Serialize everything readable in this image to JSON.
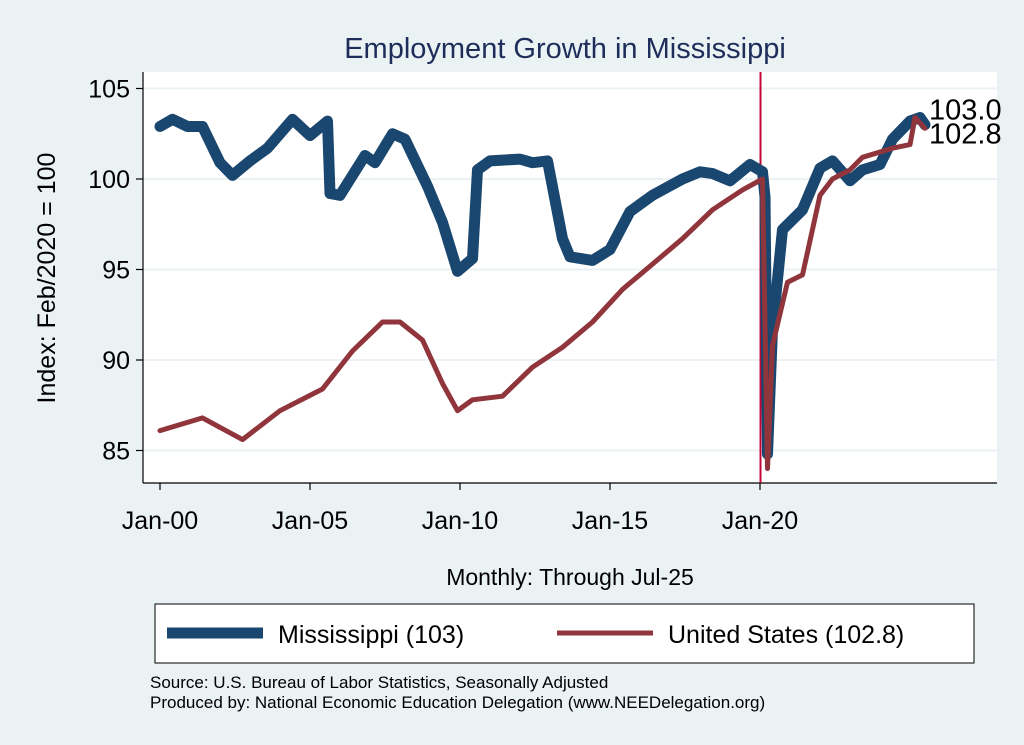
{
  "chart_data": {
    "type": "line",
    "title": "Employment Growth in Mississippi",
    "xlabel": "Monthly: Through Jul-25",
    "ylabel": "Index: Feb/2020 = 100",
    "x_ticks": [
      "Jan-00",
      "Jan-05",
      "Jan-10",
      "Jan-15",
      "Jan-20"
    ],
    "x_tick_dates": [
      "2000-01",
      "2005-01",
      "2010-01",
      "2015-01",
      "2020-01"
    ],
    "y_ticks": [
      85,
      90,
      95,
      100,
      105
    ],
    "ylim": [
      83.2,
      106
    ],
    "xlim": [
      "1999-07",
      "2027-09"
    ],
    "grid": true,
    "reference_line": {
      "x": "2020-02",
      "color": "#c10534"
    },
    "legend_position": "bottom",
    "series": [
      {
        "name": "Mississippi (103)",
        "color": "#1a476f",
        "end_label": "103.0",
        "points": [
          [
            "2000-01",
            102.9
          ],
          [
            "2000-06",
            103.3
          ],
          [
            "2000-12",
            102.9
          ],
          [
            "2001-06",
            102.9
          ],
          [
            "2002-01",
            100.9
          ],
          [
            "2002-06",
            100.2
          ],
          [
            "2003-01",
            101.0
          ],
          [
            "2003-08",
            101.7
          ],
          [
            "2004-06",
            103.3
          ],
          [
            "2005-01",
            102.4
          ],
          [
            "2005-08",
            103.2
          ],
          [
            "2005-09",
            99.2
          ],
          [
            "2006-01",
            99.1
          ],
          [
            "2006-11",
            101.3
          ],
          [
            "2007-03",
            100.9
          ],
          [
            "2007-10",
            102.5
          ],
          [
            "2008-03",
            102.2
          ],
          [
            "2008-12",
            99.6
          ],
          [
            "2009-06",
            97.6
          ],
          [
            "2009-12",
            94.9
          ],
          [
            "2010-06",
            95.6
          ],
          [
            "2010-08",
            100.5
          ],
          [
            "2011-01",
            101.0
          ],
          [
            "2012-01",
            101.1
          ],
          [
            "2012-06",
            100.9
          ],
          [
            "2012-12",
            101.0
          ],
          [
            "2013-06",
            96.7
          ],
          [
            "2013-09",
            95.7
          ],
          [
            "2014-06",
            95.5
          ],
          [
            "2015-01",
            96.1
          ],
          [
            "2015-09",
            98.2
          ],
          [
            "2016-06",
            99.1
          ],
          [
            "2017-06",
            100.0
          ],
          [
            "2018-01",
            100.4
          ],
          [
            "2018-06",
            100.3
          ],
          [
            "2019-01",
            99.9
          ],
          [
            "2019-09",
            100.8
          ],
          [
            "2020-02",
            100.4
          ],
          [
            "2020-03",
            99.0
          ],
          [
            "2020-04",
            84.8
          ],
          [
            "2020-06",
            91.7
          ],
          [
            "2020-10",
            97.2
          ],
          [
            "2021-06",
            98.3
          ],
          [
            "2022-01",
            100.6
          ],
          [
            "2022-06",
            101.0
          ],
          [
            "2023-01",
            99.9
          ],
          [
            "2023-06",
            100.5
          ],
          [
            "2024-01",
            100.8
          ],
          [
            "2024-06",
            102.2
          ],
          [
            "2025-01",
            103.2
          ],
          [
            "2025-05",
            103.4
          ],
          [
            "2025-07",
            103.0
          ]
        ]
      },
      {
        "name": "United States (102.8)",
        "color": "#90353b",
        "end_label": "102.8",
        "points": [
          [
            "2000-01",
            86.1
          ],
          [
            "2001-06",
            86.8
          ],
          [
            "2002-10",
            85.6
          ],
          [
            "2004-01",
            87.2
          ],
          [
            "2005-06",
            88.4
          ],
          [
            "2006-06",
            90.5
          ],
          [
            "2007-06",
            92.1
          ],
          [
            "2008-01",
            92.1
          ],
          [
            "2008-10",
            91.1
          ],
          [
            "2009-06",
            88.7
          ],
          [
            "2009-12",
            87.2
          ],
          [
            "2010-06",
            87.8
          ],
          [
            "2011-06",
            88.0
          ],
          [
            "2012-06",
            89.6
          ],
          [
            "2013-06",
            90.7
          ],
          [
            "2014-06",
            92.1
          ],
          [
            "2015-06",
            93.9
          ],
          [
            "2016-06",
            95.3
          ],
          [
            "2017-06",
            96.7
          ],
          [
            "2018-06",
            98.3
          ],
          [
            "2019-06",
            99.4
          ],
          [
            "2020-02",
            100.0
          ],
          [
            "2020-04",
            84.0
          ],
          [
            "2020-06",
            90.8
          ],
          [
            "2020-12",
            94.3
          ],
          [
            "2021-06",
            94.7
          ],
          [
            "2022-01",
            99.1
          ],
          [
            "2022-06",
            100.0
          ],
          [
            "2023-01",
            100.5
          ],
          [
            "2023-06",
            101.2
          ],
          [
            "2024-06",
            101.7
          ],
          [
            "2025-01",
            101.9
          ],
          [
            "2025-03",
            103.4
          ],
          [
            "2025-07",
            102.8
          ]
        ]
      }
    ]
  },
  "notes": {
    "source": "Source: U.S. Bureau of Labor Statistics, Seasonally Adjusted",
    "produced_by": "Produced by: National Economic Education Delegation (www.NEEDelegation.org)"
  }
}
